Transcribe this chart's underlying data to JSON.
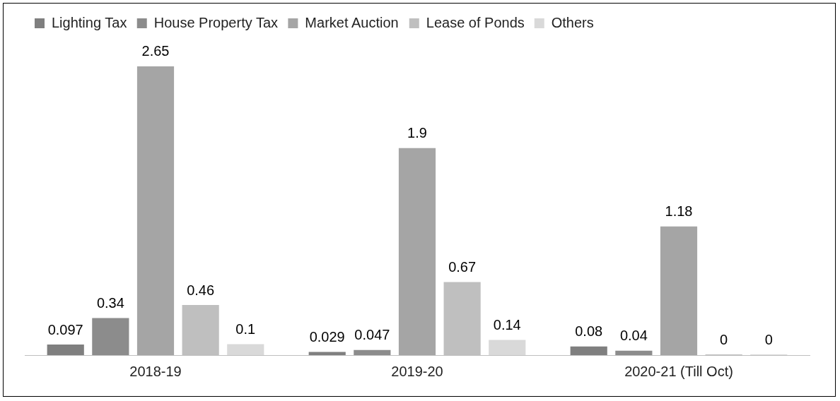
{
  "chart_data": {
    "type": "bar",
    "categories": [
      "2018-19",
      "2019-20",
      "2020-21 (Till Oct)"
    ],
    "series": [
      {
        "name": "Lighting Tax",
        "color": "#7f7f7f",
        "values": [
          0.097,
          0.029,
          0.08
        ]
      },
      {
        "name": "House Property Tax",
        "color": "#8c8c8c",
        "values": [
          0.34,
          0.047,
          0.04
        ]
      },
      {
        "name": "Market Auction",
        "color": "#a5a5a5",
        "values": [
          2.65,
          1.9,
          1.18
        ]
      },
      {
        "name": "Lease of Ponds",
        "color": "#bfbfbf",
        "values": [
          0.46,
          0.67,
          0
        ]
      },
      {
        "name": "Others",
        "color": "#d9d9d9",
        "values": [
          0.1,
          0.14,
          0
        ]
      }
    ],
    "data_labels": true,
    "legend": "top"
  }
}
